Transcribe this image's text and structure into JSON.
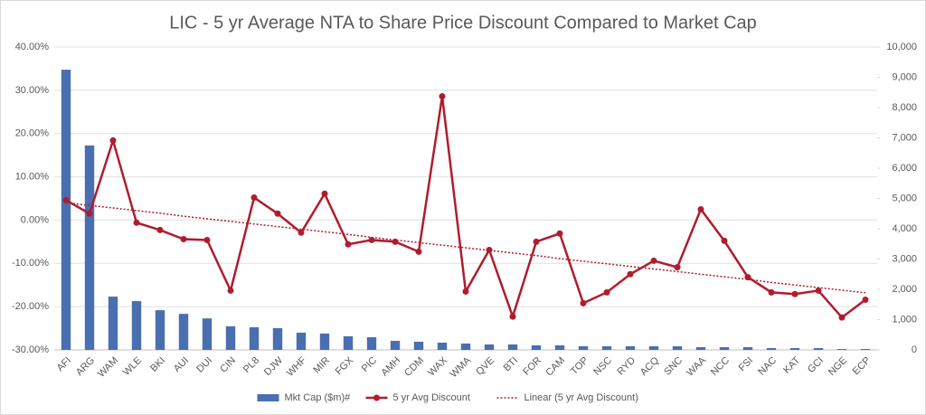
{
  "chart_data": {
    "type": "bar-line",
    "title": "LIC - 5 yr Average NTA to Share Price Discount Compared to Market Cap",
    "categories": [
      "AFI",
      "ARG",
      "WAM",
      "WLE",
      "BKI",
      "AUI",
      "DUI",
      "CIN",
      "PL8",
      "DJW",
      "WHF",
      "MIR",
      "FGX",
      "PIC",
      "AMH",
      "CDM",
      "WAX",
      "WMA",
      "QVE",
      "BTI",
      "FOR",
      "CAM",
      "TOP",
      "NSC",
      "RYD",
      "ACQ",
      "SNC",
      "WAA",
      "NCC",
      "FSI",
      "NAC",
      "KAT",
      "GCI",
      "NGE",
      "ECP"
    ],
    "series": [
      {
        "name": "Mkt Cap ($m)#",
        "type": "bar",
        "axis": "y2",
        "color": "#4a6fb0",
        "values": [
          9250,
          6750,
          1760,
          1610,
          1310,
          1190,
          1040,
          780,
          750,
          720,
          570,
          540,
          450,
          420,
          300,
          270,
          240,
          210,
          180,
          180,
          150,
          150,
          120,
          120,
          120,
          120,
          120,
          90,
          90,
          90,
          60,
          60,
          60,
          30,
          30
        ]
      },
      {
        "name": "5 yr Avg Discount",
        "type": "line",
        "axis": "y",
        "color": "#b01c2e",
        "values": [
          4.6,
          1.5,
          18.4,
          -0.6,
          -2.3,
          -4.4,
          -4.6,
          -16.3,
          5.2,
          1.5,
          -2.9,
          6.1,
          -5.6,
          -4.6,
          -5.0,
          -7.3,
          28.6,
          -16.5,
          -6.9,
          -22.3,
          -5.0,
          -3.1,
          -19.2,
          -16.7,
          -12.5,
          -9.4,
          -10.9,
          2.5,
          -4.8,
          -13.2,
          -16.7,
          -17.1,
          -16.3,
          -22.5,
          -18.4
        ]
      },
      {
        "name": "Linear (5 yr Avg Discount)",
        "type": "trend",
        "axis": "y",
        "color": "#b01c2e",
        "values": [
          4.0,
          3.4,
          2.8,
          2.2,
          1.6,
          0.9,
          0.3,
          -0.3,
          -0.9,
          -1.5,
          -2.1,
          -2.7,
          -3.3,
          -4.0,
          -4.6,
          -5.2,
          -5.8,
          -6.4,
          -7.0,
          -7.6,
          -8.2,
          -8.9,
          -9.5,
          -10.1,
          -10.7,
          -11.3,
          -11.9,
          -12.5,
          -13.1,
          -13.7,
          -14.4,
          -15.0,
          -15.6,
          -16.2,
          -16.8
        ]
      }
    ],
    "ylim": [
      -30,
      40
    ],
    "yticks": [
      {
        "value": -30,
        "label": "-30.00%"
      },
      {
        "value": -20,
        "label": "-20.00%"
      },
      {
        "value": -10,
        "label": "-10.00%"
      },
      {
        "value": 0,
        "label": "0.00%"
      },
      {
        "value": 10,
        "label": "10.00%"
      },
      {
        "value": 20,
        "label": "20.00%"
      },
      {
        "value": 30,
        "label": "30.00%"
      },
      {
        "value": 40,
        "label": "40.00%"
      }
    ],
    "y2lim": [
      0,
      10000
    ],
    "y2ticks": [
      0,
      {
        "value": 1000,
        "label": "1,000"
      },
      {
        "value": 2000,
        "label": "2,000"
      },
      {
        "value": 3000,
        "label": "3,000"
      },
      {
        "value": 4000,
        "label": "4,000"
      },
      {
        "value": 5000,
        "label": "5,000"
      },
      {
        "value": 6000,
        "label": "6,000"
      },
      {
        "value": 7000,
        "label": "7,000"
      },
      {
        "value": 8000,
        "label": "8,000"
      },
      {
        "value": 9000,
        "label": "9,000"
      },
      {
        "value": 10000,
        "label": "10,000"
      }
    ],
    "grid": true,
    "legend": "bottom"
  }
}
